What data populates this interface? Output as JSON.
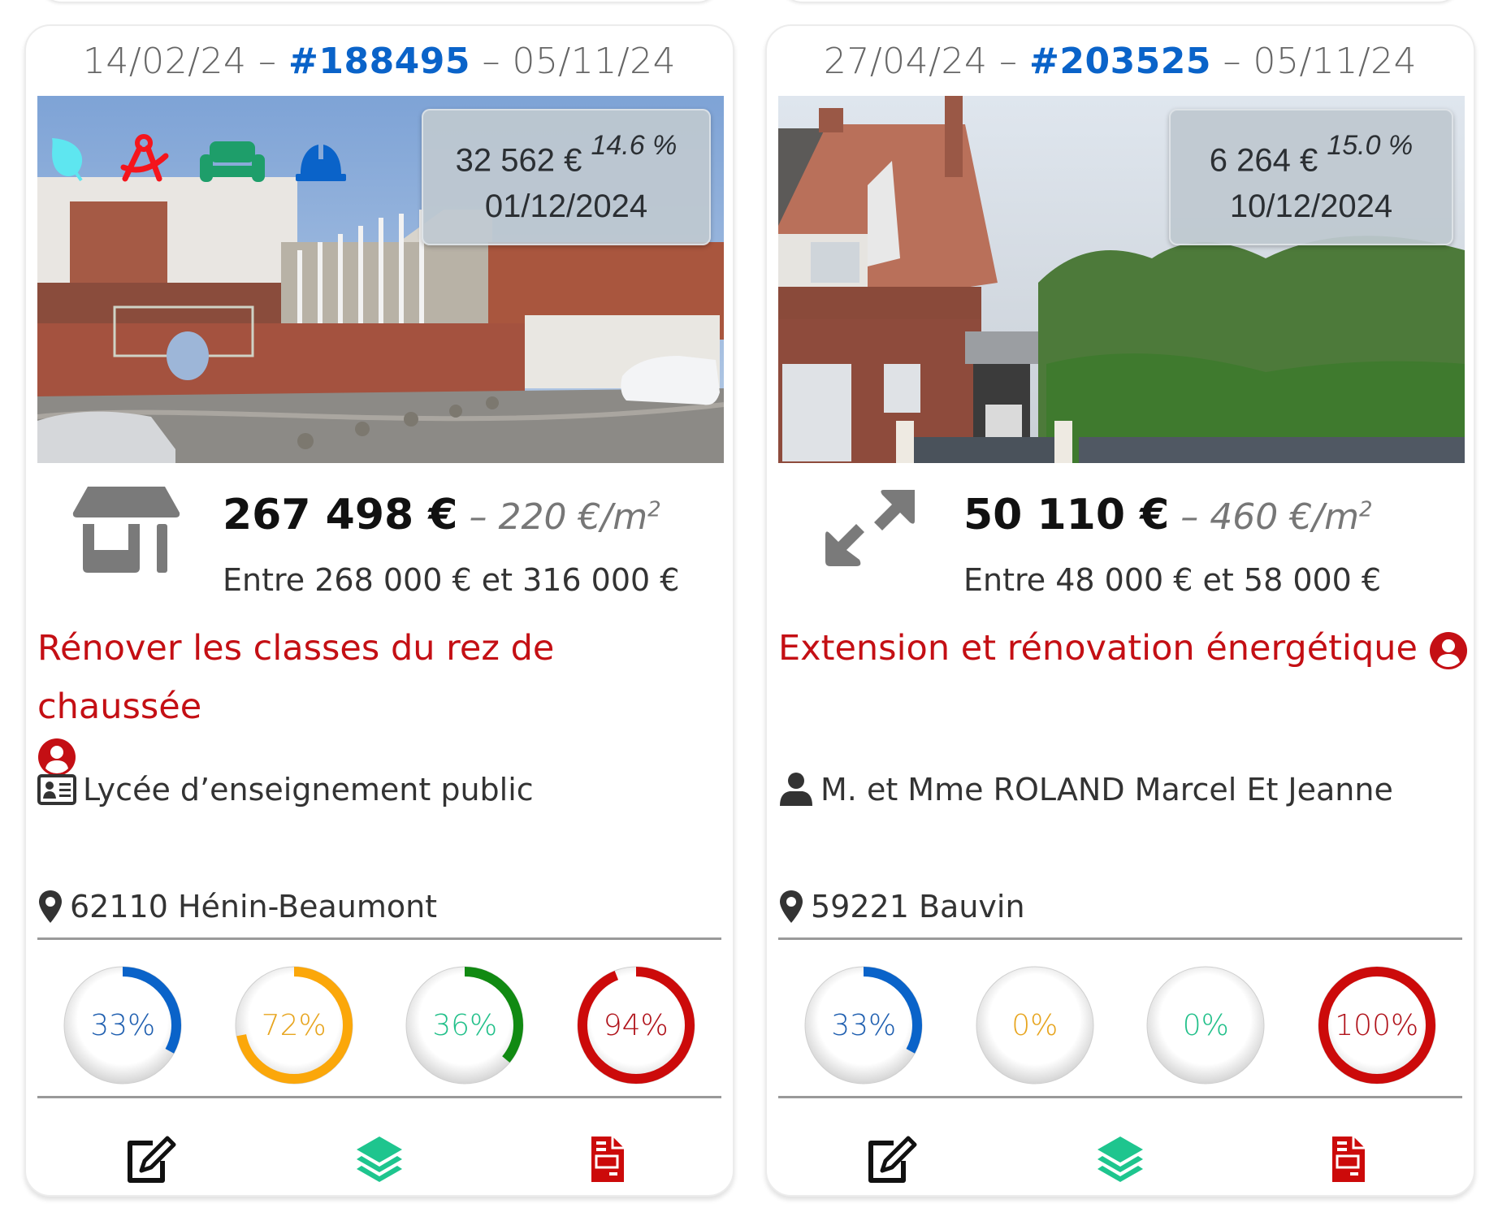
{
  "cards": [
    {
      "created_date": "14/02/24",
      "ref": "#188495",
      "updated_date": "05/11/24",
      "badges": [
        "leaf-icon",
        "compass-drafting-icon",
        "couch-icon",
        "hard-hat-icon"
      ],
      "badge_colors": [
        "#5ee6f0",
        "#f5151c",
        "#1e9e6a",
        "#0a63c9"
      ],
      "overlay": {
        "amount": "32 562 €",
        "percent": "14.6 %",
        "date": "01/12/2024"
      },
      "price_icon": "store-icon",
      "price": "267 498 €",
      "separator": " – ",
      "price_per_m2": "220 €/m",
      "price_per_m2_exp": "2",
      "range": "Entre 268 000 € et 316 000 €",
      "title": "Rénover les classes du rez de chaussée",
      "owner_icon": "id-card-icon",
      "owner": "Lycée d’enseignement public",
      "location": "62110 Hénin-Beaumont",
      "gauges": [
        {
          "value": 33,
          "label": "33%",
          "color": "#0a63c9",
          "text_color": "#1f5fb0"
        },
        {
          "value": 72,
          "label": "72%",
          "color": "#fba70a",
          "text_color": "#e7a51f"
        },
        {
          "value": 36,
          "label": "36%",
          "color": "#118a12",
          "text_color": "#22c08a"
        },
        {
          "value": 94,
          "label": "94%",
          "color": "#cc0a0a",
          "text_color": "#b0121a"
        }
      ],
      "actions": [
        "edit-icon",
        "layers-icon",
        "pdf-file-icon"
      ]
    },
    {
      "created_date": "27/04/24",
      "ref": "#203525",
      "updated_date": "05/11/24",
      "badges": [],
      "overlay": {
        "amount": "6 264 €",
        "percent": "15.0 %",
        "date": "10/12/2024"
      },
      "price_icon": "expand-arrows-icon",
      "price": "50 110 €",
      "separator": " – ",
      "price_per_m2": "460 €/m",
      "price_per_m2_exp": "2",
      "range": "Entre 48 000 € et 58 000 €",
      "title": "Extension et rénovation énergétique",
      "owner_icon": "user-icon",
      "owner": "M. et Mme ROLAND Marcel Et Jeanne",
      "location": "59221 Bauvin",
      "gauges": [
        {
          "value": 33,
          "label": "33%",
          "color": "#0a63c9",
          "text_color": "#1f5fb0"
        },
        {
          "value": 0,
          "label": "0%",
          "color": "#fba70a",
          "text_color": "#e7a51f"
        },
        {
          "value": 0,
          "label": "0%",
          "color": "#118a12",
          "text_color": "#22c08a"
        },
        {
          "value": 100,
          "label": "100%",
          "color": "#cc0a0a",
          "text_color": "#b0121a"
        }
      ],
      "actions": [
        "edit-icon",
        "layers-icon",
        "pdf-file-icon"
      ]
    }
  ],
  "colors": {
    "ref_blue": "#0a63c9",
    "title_red": "#c40f14",
    "action_green": "#1ec58e",
    "action_red": "#cc0a0a"
  }
}
